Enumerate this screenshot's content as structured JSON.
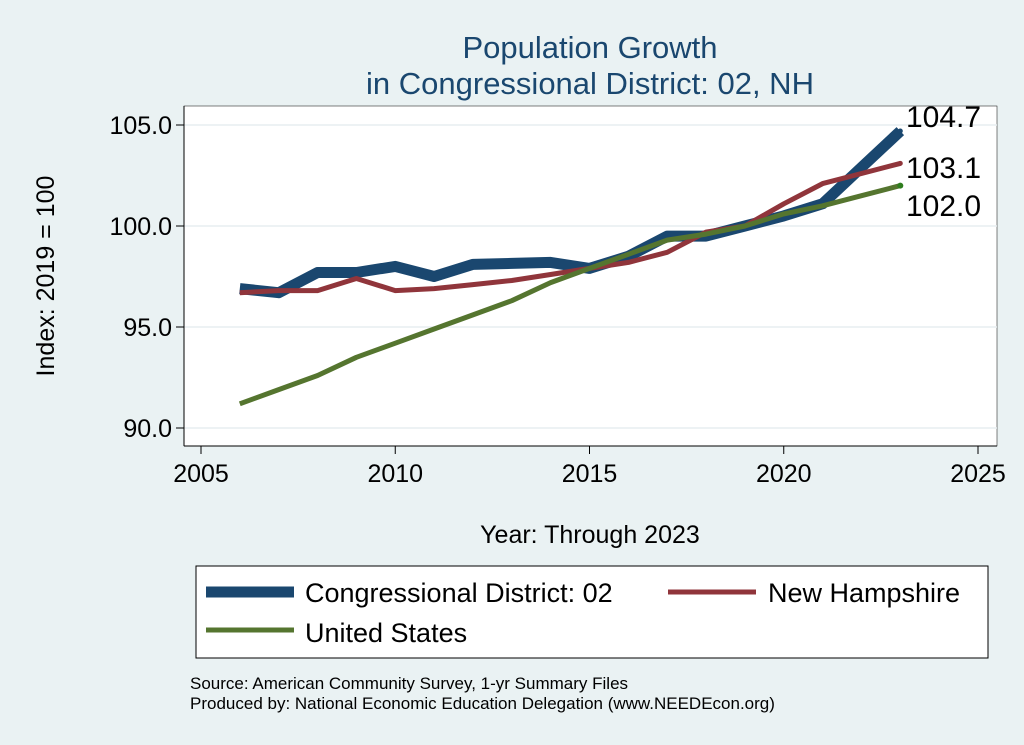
{
  "chart_data": {
    "type": "line",
    "title_lines": [
      "Population Growth",
      "in Congressional District: 02, NH"
    ],
    "xlabel": "Year: Through 2023",
    "ylabel": "Index: 2019 = 100",
    "xlim": [
      2005,
      2025
    ],
    "ylim": [
      89.5,
      105.8
    ],
    "xticks": [
      2005,
      2010,
      2015,
      2020,
      2025
    ],
    "xtick_labels": [
      "2005",
      "2010",
      "2015",
      "2020",
      "2025"
    ],
    "yticks": [
      90,
      95,
      100,
      105
    ],
    "ytick_labels": [
      "90.0",
      "95.0",
      "100.0",
      "105.0"
    ],
    "grid": true,
    "legend_position": "bottom",
    "x": [
      2006,
      2007,
      2008,
      2009,
      2010,
      2011,
      2012,
      2013,
      2014,
      2015,
      2016,
      2017,
      2018,
      2019,
      2020,
      2021,
      2022,
      2023
    ],
    "series": [
      {
        "name": "Congressional District: 02",
        "color": "#1a476f",
        "values": [
          96.9,
          96.7,
          97.7,
          97.7,
          98.0,
          97.5,
          98.1,
          98.15,
          98.2,
          97.9,
          98.5,
          99.5,
          99.5,
          100.0,
          100.5,
          101.1,
          102.9,
          104.7
        ],
        "end_label": "104.7"
      },
      {
        "name": "New Hampshire",
        "color": "#90353b",
        "values": [
          96.7,
          96.8,
          96.8,
          97.4,
          96.8,
          96.9,
          97.1,
          97.3,
          97.6,
          97.9,
          98.2,
          98.7,
          99.7,
          100.0,
          101.1,
          102.1,
          102.6,
          103.1
        ],
        "end_label": "103.1"
      },
      {
        "name": "United States",
        "color": "#55752f",
        "values": [
          91.2,
          91.9,
          92.6,
          93.5,
          94.2,
          94.9,
          95.6,
          96.3,
          97.2,
          97.9,
          98.6,
          99.3,
          99.6,
          100.0,
          100.6,
          101.0,
          101.5,
          102.0
        ],
        "end_label": "102.0"
      }
    ],
    "source_lines": [
      "Source: American Community Survey, 1-yr Summary Files",
      "Produced by: National Economic Education Delegation (www.NEEDEcon.org)"
    ]
  }
}
